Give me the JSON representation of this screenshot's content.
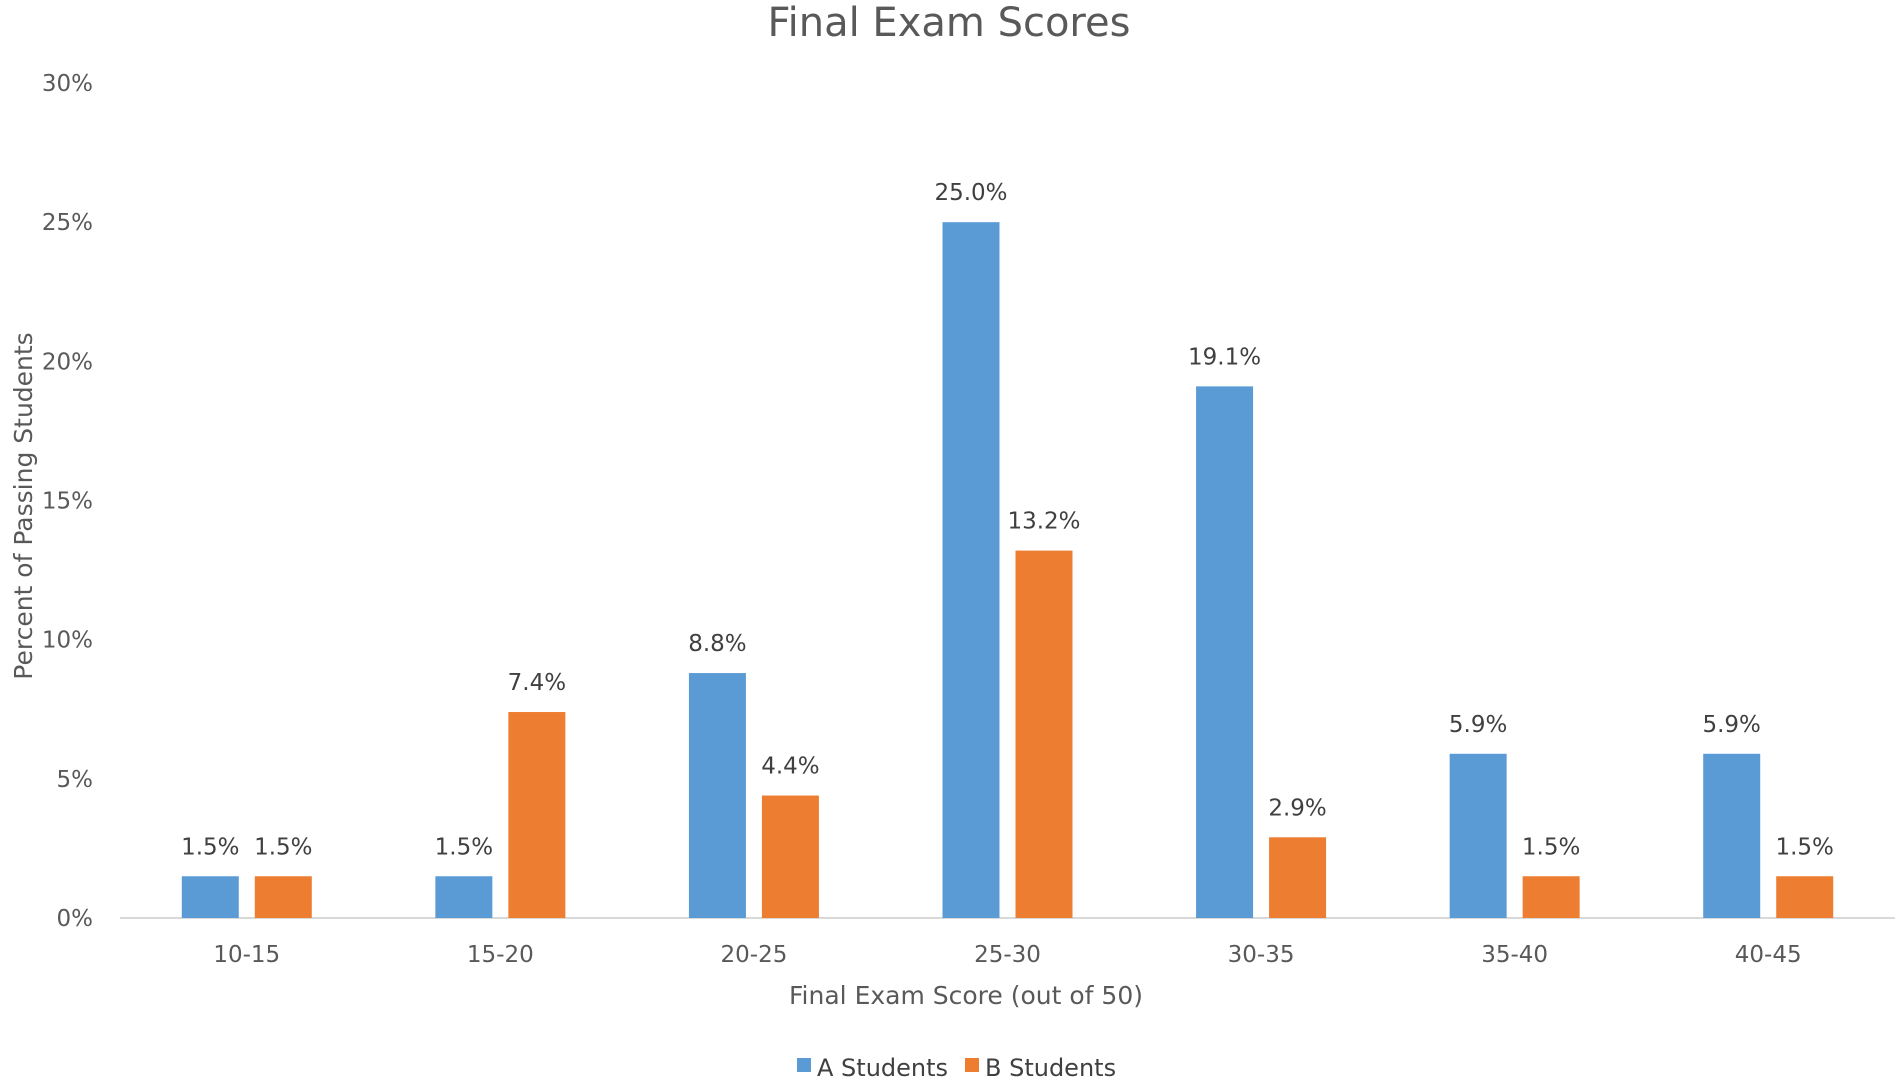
{
  "chart_data": {
    "type": "bar",
    "title": "Final Exam Scores",
    "xlabel": "Final Exam Score (out of 50)",
    "ylabel": "Percent of Passing Students",
    "ylim": [
      0,
      30
    ],
    "yticks": [
      "0%",
      "5%",
      "10%",
      "15%",
      "20%",
      "25%",
      "30%"
    ],
    "categories": [
      "10-15",
      "15-20",
      "20-25",
      "25-30",
      "30-35",
      "35-40",
      "40-45"
    ],
    "series": [
      {
        "name": "A Students",
        "color": "#5B9BD5",
        "values": [
          1.5,
          1.5,
          8.8,
          25.0,
          19.1,
          5.9,
          5.9
        ],
        "labels": [
          "1.5%",
          "1.5%",
          "8.8%",
          "25.0%",
          "19.1%",
          "5.9%",
          "5.9%"
        ]
      },
      {
        "name": "B Students",
        "color": "#ED7D31",
        "values": [
          1.5,
          7.4,
          4.4,
          13.2,
          2.9,
          1.5,
          1.5
        ],
        "labels": [
          "1.5%",
          "7.4%",
          "4.4%",
          "13.2%",
          "2.9%",
          "1.5%",
          "1.5%"
        ]
      }
    ],
    "grid": false,
    "legend_position": "bottom"
  }
}
